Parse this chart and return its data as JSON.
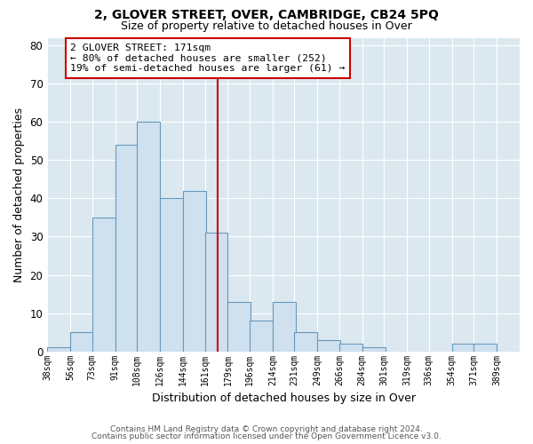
{
  "title": "2, GLOVER STREET, OVER, CAMBRIDGE, CB24 5PQ",
  "subtitle": "Size of property relative to detached houses in Over",
  "xlabel": "Distribution of detached houses by size in Over",
  "ylabel": "Number of detached properties",
  "bar_color": "#cfe0ef",
  "bar_edge_color": "#6699bb",
  "plot_bg_color": "#dce8f0",
  "fig_bg_color": "#ffffff",
  "grid_color": "#ffffff",
  "vline_x_bin_idx": 7,
  "vline_color": "#cc0000",
  "annotation_text": "2 GLOVER STREET: 171sqm\n← 80% of detached houses are smaller (252)\n19% of semi-detached houses are larger (61) →",
  "annotation_box_edgecolor": "#cc0000",
  "bins_left": [
    38,
    56,
    73,
    91,
    108,
    126,
    144,
    161,
    179,
    196,
    214,
    231,
    249,
    266,
    284,
    301,
    319,
    336,
    354,
    371,
    389
  ],
  "bin_width": 18,
  "bar_heights": [
    1,
    5,
    35,
    54,
    60,
    40,
    42,
    31,
    13,
    8,
    13,
    5,
    3,
    2,
    1,
    0,
    0,
    0,
    2,
    2,
    0
  ],
  "tick_labels": [
    "38sqm",
    "56sqm",
    "73sqm",
    "91sqm",
    "108sqm",
    "126sqm",
    "144sqm",
    "161sqm",
    "179sqm",
    "196sqm",
    "214sqm",
    "231sqm",
    "249sqm",
    "266sqm",
    "284sqm",
    "301sqm",
    "319sqm",
    "336sqm",
    "354sqm",
    "371sqm",
    "389sqm"
  ],
  "ylim": [
    0,
    82
  ],
  "yticks": [
    0,
    10,
    20,
    30,
    40,
    50,
    60,
    70,
    80
  ],
  "footer_line1": "Contains HM Land Registry data © Crown copyright and database right 2024.",
  "footer_line2": "Contains public sector information licensed under the Open Government Licence v3.0."
}
